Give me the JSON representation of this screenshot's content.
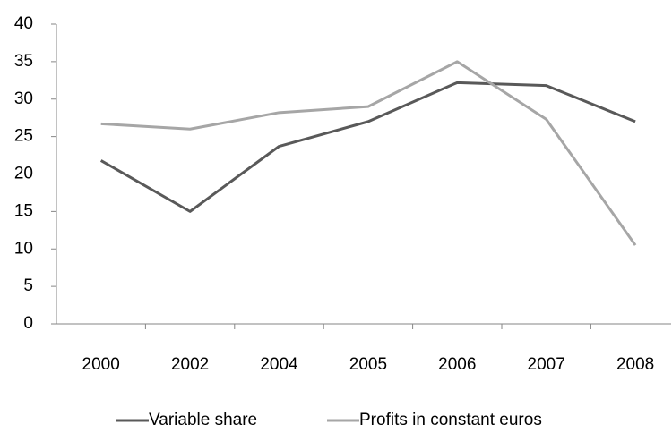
{
  "chart_data": {
    "type": "line",
    "categories": [
      "2000",
      "2002",
      "2004",
      "2005",
      "2006",
      "2007",
      "2008"
    ],
    "series": [
      {
        "name": "Variable share",
        "color": "#595959",
        "values": [
          21.8,
          15,
          23.7,
          27,
          32.2,
          31.8,
          27
        ]
      },
      {
        "name": "Profits in constant euros",
        "color": "#a6a6a6",
        "values": [
          26.7,
          26,
          28.2,
          29,
          35,
          27.3,
          10.5
        ]
      }
    ],
    "ylim": [
      0,
      40
    ],
    "yticks": [
      0,
      5,
      10,
      15,
      20,
      25,
      30,
      35,
      40
    ],
    "grid": false,
    "legend": "bottom"
  }
}
